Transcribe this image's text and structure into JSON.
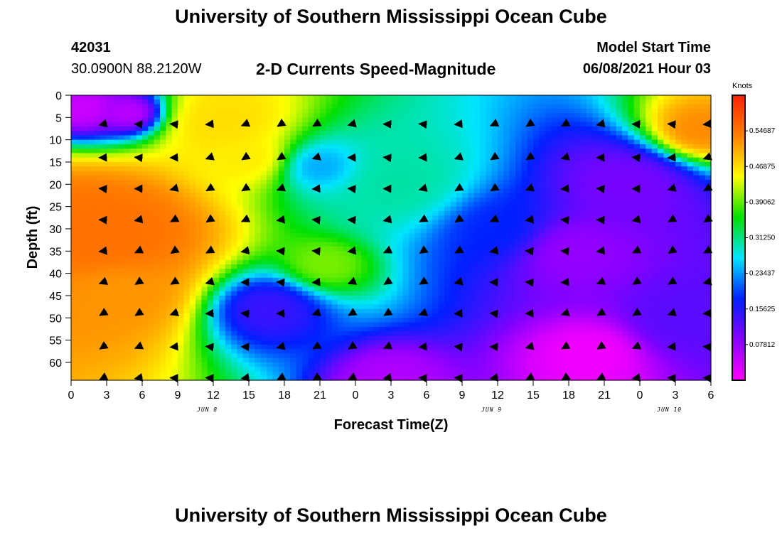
{
  "header": {
    "title": "University of Southern Mississippi Ocean Cube",
    "station_id": "42031",
    "station_coords": "30.0900N  88.2120W",
    "plot_title": "2-D Currents Speed-Magnitude",
    "model_start_label": "Model Start Time",
    "model_start_value": "06/08/2021 Hour 03"
  },
  "footer": {
    "title": "University of Southern Mississippi Ocean Cube"
  },
  "chart_data": {
    "type": "heatmap",
    "title": "2-D Currents Speed-Magnitude",
    "xlabel": "Forecast Time(Z)",
    "ylabel": "Depth (ft)",
    "x_tick_labels": [
      "0",
      "3",
      "6",
      "9",
      "12",
      "15",
      "18",
      "21",
      "0",
      "3",
      "6",
      "9",
      "12",
      "15",
      "18",
      "21",
      "0",
      "3",
      "6"
    ],
    "x_date_labels": [
      {
        "label": "JUN 8",
        "hour": 11.5
      },
      {
        "label": "JUN 9",
        "hour": 35.5
      },
      {
        "label": "JUN 10",
        "hour": 50.5
      }
    ],
    "xlim_hours": [
      0,
      54
    ],
    "y_ticks": [
      0,
      5,
      10,
      15,
      20,
      25,
      30,
      35,
      40,
      45,
      50,
      55,
      60
    ],
    "ylim": [
      0,
      64
    ],
    "y_inverted": true,
    "colorbar": {
      "label": "Knots",
      "ticks": [
        "0.54687",
        "0.46875",
        "0.39062",
        "0.31250",
        "0.23437",
        "0.15625",
        "0.07812"
      ],
      "tick_values": [
        0.54687,
        0.46875,
        0.39062,
        0.3125,
        0.23437,
        0.15625,
        0.07812
      ],
      "range": [
        0.0,
        0.625
      ],
      "colors": [
        "#ff00ff",
        "#8a00ff",
        "#0020ff",
        "#00e5ff",
        "#00e000",
        "#ffff00",
        "#ff8000",
        "#ff2000"
      ]
    },
    "vector_times_hours": [
      2.7,
      5.7,
      8.7,
      11.7,
      14.7,
      17.7,
      20.7,
      23.7,
      26.7,
      29.7,
      32.7,
      35.7,
      38.7,
      41.7,
      44.7,
      47.7,
      50.7,
      53.7
    ],
    "vector_depths_ft": [
      6.5,
      14,
      21,
      28,
      35,
      42,
      49,
      56.5,
      63.5
    ],
    "speed_features": [
      {
        "hour": 1.0,
        "depth": 3,
        "speed": 0.04,
        "radius": 3.5
      },
      {
        "hour": 5.0,
        "depth": 4,
        "speed": 0.05,
        "radius": 3.0
      },
      {
        "hour": 3.0,
        "depth": 32,
        "speed": 0.55,
        "radius": 9.0
      },
      {
        "hour": 4.0,
        "depth": 44,
        "speed": 0.52,
        "radius": 7.0
      },
      {
        "hour": 13.0,
        "depth": 6,
        "speed": 0.47,
        "radius": 6.0
      },
      {
        "hour": 15.0,
        "depth": 14,
        "speed": 0.46,
        "radius": 5.0
      },
      {
        "hour": 21.0,
        "depth": 16,
        "speed": 0.24,
        "radius": 4.5
      },
      {
        "hour": 21.5,
        "depth": 38,
        "speed": 0.4,
        "radius": 4.0
      },
      {
        "hour": 16.5,
        "depth": 48,
        "speed": 0.14,
        "radius": 5.0
      },
      {
        "hour": 36.0,
        "depth": 30,
        "speed": 0.18,
        "radius": 7.0
      },
      {
        "hour": 42.0,
        "depth": 35,
        "speed": 0.08,
        "radius": 7.0
      },
      {
        "hour": 44.0,
        "depth": 58,
        "speed": 0.01,
        "radius": 5.0
      },
      {
        "hour": 47.0,
        "depth": 20,
        "speed": 0.1,
        "radius": 7.0
      },
      {
        "hour": 53.0,
        "depth": 8,
        "speed": 0.53,
        "radius": 5.0
      },
      {
        "hour": 51.5,
        "depth": 50,
        "speed": 0.12,
        "radius": 6.0
      },
      {
        "hour": 28.0,
        "depth": 20,
        "speed": 0.3,
        "radius": 8.0
      },
      {
        "hour": 27.0,
        "depth": 64,
        "speed": 0.06,
        "radius": 4.0
      }
    ]
  }
}
